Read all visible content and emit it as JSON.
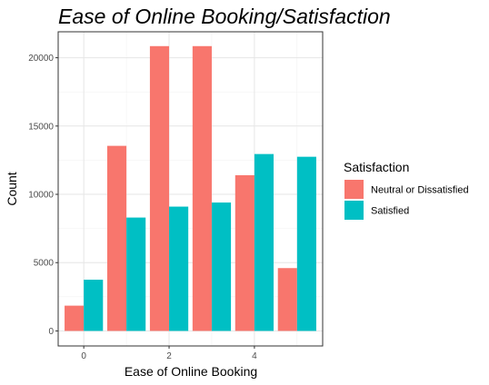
{
  "chart_data": {
    "type": "bar",
    "title": "Ease of Online Booking/Satisfaction",
    "xlabel": "Ease of Online Booking",
    "ylabel": "Count",
    "categories": [
      0,
      1,
      2,
      3,
      4,
      5
    ],
    "x_ticks": [
      "0",
      "2",
      "4"
    ],
    "y_ticks": [
      "0",
      "5000",
      "10000",
      "15000",
      "20000"
    ],
    "ylim": [
      0,
      21900
    ],
    "xlim": [
      -0.6,
      5.6
    ],
    "grid": true,
    "legend": {
      "title": "Satisfaction",
      "placement": "right"
    },
    "series": [
      {
        "name": "Neutral or Dissatisfied",
        "color": "#F8766D",
        "values": [
          1850,
          13550,
          20850,
          20850,
          11400,
          4600
        ]
      },
      {
        "name": "Satisfied",
        "color": "#00BFC4",
        "values": [
          3750,
          8300,
          9100,
          9400,
          12950,
          12750
        ]
      }
    ]
  }
}
